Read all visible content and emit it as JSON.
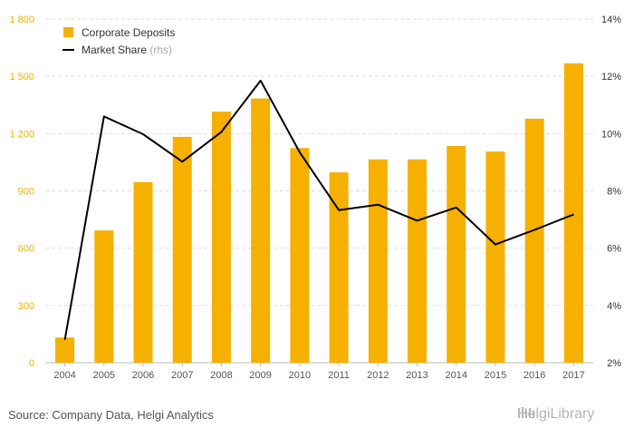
{
  "chart_data": {
    "type": "bar",
    "categories": [
      "2004",
      "2005",
      "2006",
      "2007",
      "2008",
      "2009",
      "2010",
      "2011",
      "2012",
      "2013",
      "2014",
      "2015",
      "2016",
      "2017"
    ],
    "series": [
      {
        "name": "Corporate Deposits",
        "type": "bar",
        "axis": "left",
        "color": "#f5b000",
        "values": [
          132,
          693,
          946,
          1183,
          1315,
          1384,
          1124,
          997,
          1065,
          1065,
          1135,
          1106,
          1278,
          1568
        ]
      },
      {
        "name": "Market Share",
        "name_suffix": " (rhs)",
        "type": "line",
        "axis": "right",
        "color": "#000000",
        "values": [
          2.8,
          10.6,
          9.98,
          9.02,
          10.06,
          11.85,
          9.35,
          7.33,
          7.52,
          6.96,
          7.42,
          6.13,
          6.64,
          7.18
        ]
      }
    ],
    "y_left": {
      "min": 0,
      "max": 1800,
      "ticks": [
        0,
        300,
        600,
        900,
        1200,
        1500,
        1800
      ],
      "tick_labels": [
        "0",
        "300",
        "600",
        "900",
        "1 200",
        "1 500",
        "1 800"
      ]
    },
    "y_right": {
      "min": 2,
      "max": 14,
      "ticks": [
        2,
        4,
        6,
        8,
        10,
        12,
        14
      ],
      "tick_labels": [
        "2%",
        "4%",
        "6%",
        "8%",
        "10%",
        "12%",
        "14%"
      ]
    },
    "grid": true,
    "legend_position": "top-left",
    "source": "Source: Company Data, Helgi Analytics",
    "brand": "HelgiLibrary",
    "colors": {
      "left_axis": "#f5b000",
      "grid": "#dddddd",
      "axis_text": "#555555"
    }
  }
}
